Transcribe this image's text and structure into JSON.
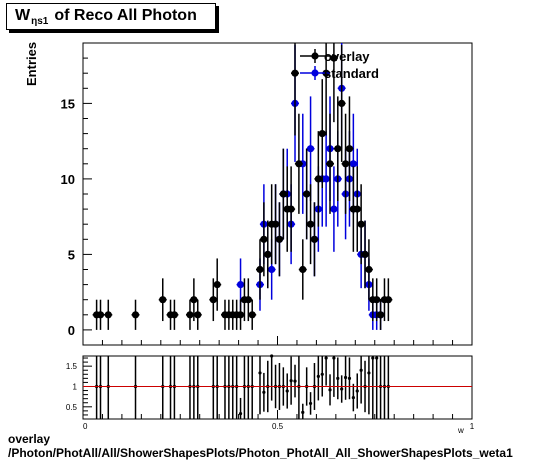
{
  "title": {
    "main": "W",
    "sub": "ηs1",
    "rest": "of Reco All Photon"
  },
  "footer": {
    "line1": "overlay",
    "line2": "/Photon/PhotAll/All/ShowerShapesPlots/Photon_PhotAll_All_ShowerShapesPlots_weta1"
  },
  "chart_data": [
    {
      "type": "scatter",
      "ylabel": "Entries",
      "xlim": [
        0,
        1
      ],
      "ylim": [
        -1,
        19
      ],
      "yticks": [
        "0",
        "5",
        "10",
        "15"
      ],
      "legend": {
        "placement": "top-right",
        "entries": [
          "overlay",
          "standard"
        ]
      },
      "colors": {
        "overlay": "#000000",
        "standard": "#0000dd"
      },
      "series": [
        {
          "name": "overlay",
          "x": [
            0.035,
            0.045,
            0.065,
            0.135,
            0.205,
            0.225,
            0.235,
            0.275,
            0.285,
            0.295,
            0.335,
            0.345,
            0.365,
            0.375,
            0.385,
            0.395,
            0.405,
            0.415,
            0.425,
            0.435,
            0.455,
            0.465,
            0.475,
            0.485,
            0.495,
            0.505,
            0.515,
            0.525,
            0.535,
            0.545,
            0.555,
            0.565,
            0.575,
            0.585,
            0.595,
            0.605,
            0.615,
            0.625,
            0.635,
            0.645,
            0.655,
            0.665,
            0.675,
            0.685,
            0.695,
            0.705,
            0.715,
            0.725,
            0.735,
            0.745,
            0.755,
            0.765,
            0.775,
            0.785
          ],
          "y": [
            1,
            1,
            1,
            1,
            2,
            1,
            1,
            1,
            2,
            1,
            2,
            3,
            1,
            1,
            1,
            1,
            1,
            2,
            2,
            1,
            4,
            6,
            5,
            7,
            7,
            6,
            9,
            8,
            8,
            17,
            11,
            4,
            9,
            7,
            6,
            10,
            13,
            17,
            11,
            18,
            12,
            15,
            11,
            12,
            8,
            8,
            7,
            5,
            4,
            2,
            2,
            1,
            2,
            2
          ]
        },
        {
          "name": "standard",
          "x": [
            0.405,
            0.455,
            0.465,
            0.475,
            0.485,
            0.495,
            0.505,
            0.515,
            0.525,
            0.535,
            0.545,
            0.565,
            0.575,
            0.585,
            0.595,
            0.605,
            0.615,
            0.625,
            0.635,
            0.645,
            0.655,
            0.665,
            0.675,
            0.685,
            0.695,
            0.705,
            0.715,
            0.725,
            0.735,
            0.745,
            0.755,
            0.765
          ],
          "y": [
            3,
            3,
            7,
            5,
            4,
            7,
            6,
            9,
            9,
            7,
            15,
            11,
            9,
            12,
            6,
            8,
            10,
            10,
            12,
            8,
            10,
            16,
            9,
            10,
            11,
            9,
            5,
            5,
            3,
            1,
            1,
            1
          ]
        }
      ]
    },
    {
      "type": "scatter",
      "xlim": [
        0,
        1
      ],
      "ylim": [
        0.2,
        1.75
      ],
      "xticks": [
        "0",
        "0.5",
        "1"
      ],
      "yticks": [
        "0.5",
        "1",
        "1.5"
      ],
      "xlabel": "w",
      "reference_line": 1.0,
      "reference_color": "#cc0000"
    }
  ]
}
